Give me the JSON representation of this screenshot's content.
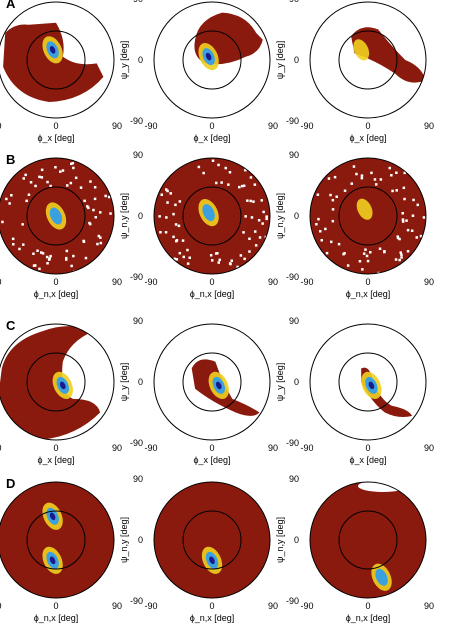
{
  "figure": {
    "colors": {
      "background": "#ffffff",
      "occupancy": "#8b1a0e",
      "density_high": "#1a1a8c",
      "density_mid": "#3aa0e0",
      "density_low": "#f0d020",
      "ring": "#000000"
    },
    "panel_labels": [
      "A",
      "B",
      "C",
      "D"
    ],
    "ticks": [
      "90",
      "0",
      "-90",
      "-90",
      "0",
      "90"
    ],
    "ring_radii_deg": [
      45,
      90
    ],
    "rows": [
      {
        "label": "A",
        "xlabel": "ϕ_x [deg]",
        "ylabel": "ψ_y [deg]",
        "panels": [
          {
            "occupancy": "left-half-with-lower-arm",
            "density_peak": [
              -5,
              15
            ],
            "density_level": "high"
          },
          {
            "occupancy": "upper-band-arm-to-right",
            "density_peak": [
              -5,
              5
            ],
            "density_level": "high"
          },
          {
            "occupancy": "right-arm-band",
            "density_peak": [
              -10,
              15
            ],
            "density_level": "low"
          }
        ]
      },
      {
        "label": "B",
        "xlabel": "ϕ_n,x [deg]",
        "ylabel": "ψ_n,y [deg]",
        "panels": [
          {
            "occupancy": "full-disk-white-specks",
            "density_peak": [
              0,
              0
            ],
            "density_level": "mid"
          },
          {
            "occupancy": "full-disk-white-specks",
            "density_peak": [
              -5,
              5
            ],
            "density_level": "mid"
          },
          {
            "occupancy": "full-disk-white-specks",
            "density_peak": [
              -5,
              10
            ],
            "density_level": "low"
          }
        ]
      },
      {
        "label": "C",
        "xlabel": "ϕ_x [deg]",
        "ylabel": "ψ_y [deg]",
        "panels": [
          {
            "occupancy": "left-half-large",
            "density_peak": [
              10,
              -5
            ],
            "density_level": "high"
          },
          {
            "occupancy": "center-arm-to-lower-right",
            "density_peak": [
              10,
              -5
            ],
            "density_level": "high"
          },
          {
            "occupancy": "thin-arm-to-lower-right",
            "density_peak": [
              5,
              -5
            ],
            "density_level": "high"
          }
        ]
      },
      {
        "label": "D",
        "xlabel": "ϕ_n,x [deg]",
        "ylabel": "ψ_n,y [deg]",
        "panels": [
          {
            "occupancy": "full-disk",
            "density_peak": [
              -5,
              -30
            ],
            "density_level": "high",
            "second_peak": [
              -5,
              35
            ]
          },
          {
            "occupancy": "full-disk",
            "density_peak": [
              0,
              -30
            ],
            "density_level": "high"
          },
          {
            "occupancy": "full-disk-white-top",
            "density_peak": [
              20,
              -55
            ],
            "density_level": "mid"
          }
        ]
      }
    ]
  },
  "chart_data": [
    {
      "type": "heatmap",
      "panel": "A1",
      "xlim": [
        -90,
        90
      ],
      "ylim": [
        -90,
        90
      ],
      "xlabel": "ϕ_x [deg]",
      "ylabel": "ψ_y [deg]",
      "peak": {
        "x": -5,
        "y": 15
      }
    },
    {
      "type": "heatmap",
      "panel": "A2",
      "xlim": [
        -90,
        90
      ],
      "ylim": [
        -90,
        90
      ],
      "xlabel": "ϕ_x [deg]",
      "ylabel": "",
      "peak": {
        "x": -5,
        "y": 5
      }
    },
    {
      "type": "heatmap",
      "panel": "A3",
      "xlim": [
        -90,
        90
      ],
      "ylim": [
        -90,
        90
      ],
      "xlabel": "ϕ_x [deg]",
      "ylabel": "",
      "peak": {
        "x": -10,
        "y": 15
      }
    },
    {
      "type": "heatmap",
      "panel": "B1",
      "xlim": [
        -90,
        90
      ],
      "ylim": [
        -90,
        90
      ],
      "xlabel": "ϕ_n,x [deg]",
      "ylabel": "ψ_n,y [deg]",
      "peak": {
        "x": 0,
        "y": 0
      }
    },
    {
      "type": "heatmap",
      "panel": "B2",
      "xlim": [
        -90,
        90
      ],
      "ylim": [
        -90,
        90
      ],
      "xlabel": "ϕ_n,x [deg]",
      "ylabel": "ψ_n,y [deg]",
      "peak": {
        "x": -5,
        "y": 5
      }
    },
    {
      "type": "heatmap",
      "panel": "B3",
      "xlim": [
        -90,
        90
      ],
      "ylim": [
        -90,
        90
      ],
      "xlabel": "ϕ_n,x [deg]",
      "ylabel": "ψ_n,y [deg]",
      "peak": {
        "x": -5,
        "y": 10
      }
    },
    {
      "type": "heatmap",
      "panel": "C1",
      "xlim": [
        -90,
        90
      ],
      "ylim": [
        -90,
        90
      ],
      "xlabel": "ϕ_x [deg]",
      "ylabel": "ψ_y [deg]",
      "peak": {
        "x": 10,
        "y": -5
      }
    },
    {
      "type": "heatmap",
      "panel": "C2",
      "xlim": [
        -90,
        90
      ],
      "ylim": [
        -90,
        90
      ],
      "xlabel": "ϕ_x [deg]",
      "ylabel": "ψ_y [deg]",
      "peak": {
        "x": 10,
        "y": -5
      }
    },
    {
      "type": "heatmap",
      "panel": "C3",
      "xlim": [
        -90,
        90
      ],
      "ylim": [
        -90,
        90
      ],
      "xlabel": "ϕ_x [deg]",
      "ylabel": "",
      "peak": {
        "x": 5,
        "y": -5
      }
    },
    {
      "type": "heatmap",
      "panel": "D1",
      "xlim": [
        -90,
        90
      ],
      "ylim": [
        -90,
        90
      ],
      "xlabel": "ϕ_n,x [deg]",
      "ylabel": "ψ_n,y [deg]",
      "peak": {
        "x": -5,
        "y": -30
      }
    },
    {
      "type": "heatmap",
      "panel": "D2",
      "xlim": [
        -90,
        90
      ],
      "ylim": [
        -90,
        90
      ],
      "xlabel": "ϕ_n,x [deg]",
      "ylabel": "ψ_n,y [deg]",
      "peak": {
        "x": 0,
        "y": -30
      }
    },
    {
      "type": "heatmap",
      "panel": "D3",
      "xlim": [
        -90,
        90
      ],
      "ylim": [
        -90,
        90
      ],
      "xlabel": "ϕ_n,x [deg]",
      "ylabel": "ψ_n,y [deg]",
      "peak": {
        "x": 20,
        "y": -55
      }
    }
  ]
}
